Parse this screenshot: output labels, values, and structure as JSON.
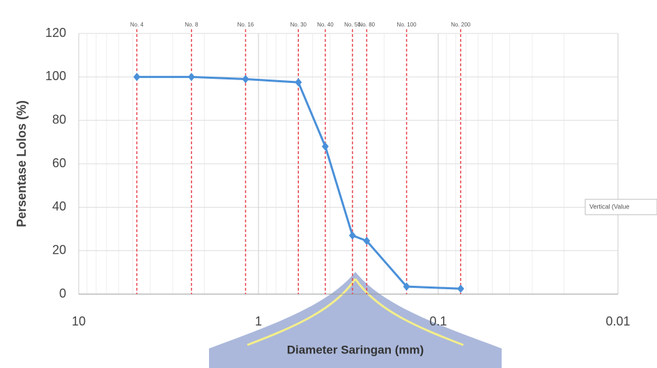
{
  "chart_data": {
    "type": "line",
    "x_label": "Diameter Saringan (mm)",
    "y_label": "Persentase Lolos (%)",
    "annotation": "Vertical (Value",
    "x": [
      4.75,
      2.36,
      1.18,
      0.6,
      0.425,
      0.3,
      0.25,
      0.15,
      0.075
    ],
    "series": [
      {
        "color": "#4a90d9",
        "values": [
          100,
          100,
          99,
          97.5,
          68,
          27,
          24.5,
          3.5,
          2.5
        ]
      }
    ],
    "reference_lines": {
      "color": "#e8404a",
      "labels": [
        "No. 4",
        "No. 8",
        "No. 16",
        "No. 30",
        "No. 40",
        "No. 50",
        "No. 80",
        "No. 100",
        "No. 200"
      ],
      "x": [
        4.75,
        2.36,
        1.18,
        0.6,
        0.425,
        0.3,
        0.25,
        0.15,
        0.075
      ]
    },
    "x_log": true,
    "xlim": [
      10,
      0.01
    ],
    "xticks": [
      10,
      1,
      0.1,
      0.01
    ],
    "ylim": [
      0,
      120
    ],
    "yticks": [
      0,
      20,
      40,
      60,
      80,
      100,
      120
    ],
    "grid": true
  }
}
